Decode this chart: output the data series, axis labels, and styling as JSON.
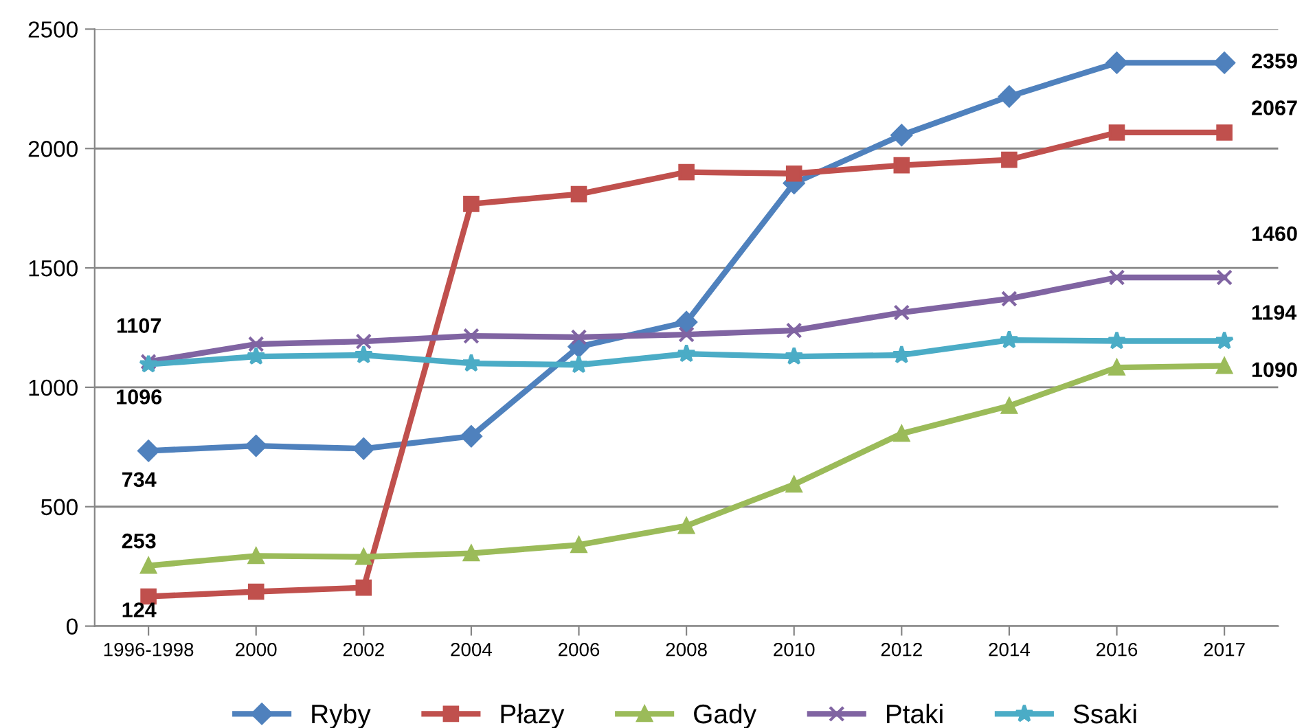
{
  "chart_data": {
    "type": "line",
    "categories": [
      "1996-1998",
      "2000",
      "2002",
      "2004",
      "2006",
      "2008",
      "2010",
      "2012",
      "2014",
      "2016",
      "2017"
    ],
    "series": [
      {
        "name": "Ryby",
        "color": "#4f81bd",
        "marker": "diamond",
        "values": [
          734,
          755,
          743,
          795,
          1170,
          1273,
          1855,
          2056,
          2218,
          2359,
          2359
        ],
        "value_labels": [
          "734",
          null,
          null,
          null,
          null,
          null,
          null,
          null,
          null,
          null,
          "2359"
        ]
      },
      {
        "name": "Płazy",
        "color": "#c0504d",
        "marker": "square",
        "values": [
          124,
          144,
          161,
          1768,
          1809,
          1901,
          1895,
          1930,
          1953,
          2067,
          2067
        ],
        "value_labels": [
          "124",
          null,
          null,
          null,
          null,
          null,
          null,
          null,
          null,
          null,
          "2067"
        ]
      },
      {
        "name": "Gady",
        "color": "#9bbb59",
        "marker": "triangle",
        "values": [
          253,
          294,
          290,
          305,
          340,
          420,
          593,
          806,
          922,
          1083,
          1090
        ],
        "value_labels": [
          "253",
          null,
          null,
          null,
          null,
          null,
          null,
          null,
          null,
          null,
          "1090"
        ]
      },
      {
        "name": "Ptaki",
        "color": "#8064a2",
        "marker": "cross",
        "values": [
          1107,
          1181,
          1192,
          1215,
          1210,
          1221,
          1238,
          1313,
          1371,
          1460,
          1460
        ],
        "value_labels": [
          "1107",
          null,
          null,
          null,
          null,
          null,
          null,
          null,
          null,
          null,
          "1460"
        ]
      },
      {
        "name": "Ssaki",
        "color": "#4bacc6",
        "marker": "star",
        "values": [
          1096,
          1129,
          1135,
          1100,
          1094,
          1140,
          1129,
          1135,
          1198,
          1194,
          1194
        ],
        "value_labels": [
          "1096",
          null,
          null,
          null,
          null,
          null,
          null,
          null,
          null,
          null,
          "1194"
        ]
      }
    ],
    "ylim": [
      0,
      2500
    ],
    "yticks": [
      0,
      500,
      1000,
      1500,
      2000,
      2500
    ],
    "grid": "y",
    "legend": "bottom",
    "line_style": "solid"
  }
}
